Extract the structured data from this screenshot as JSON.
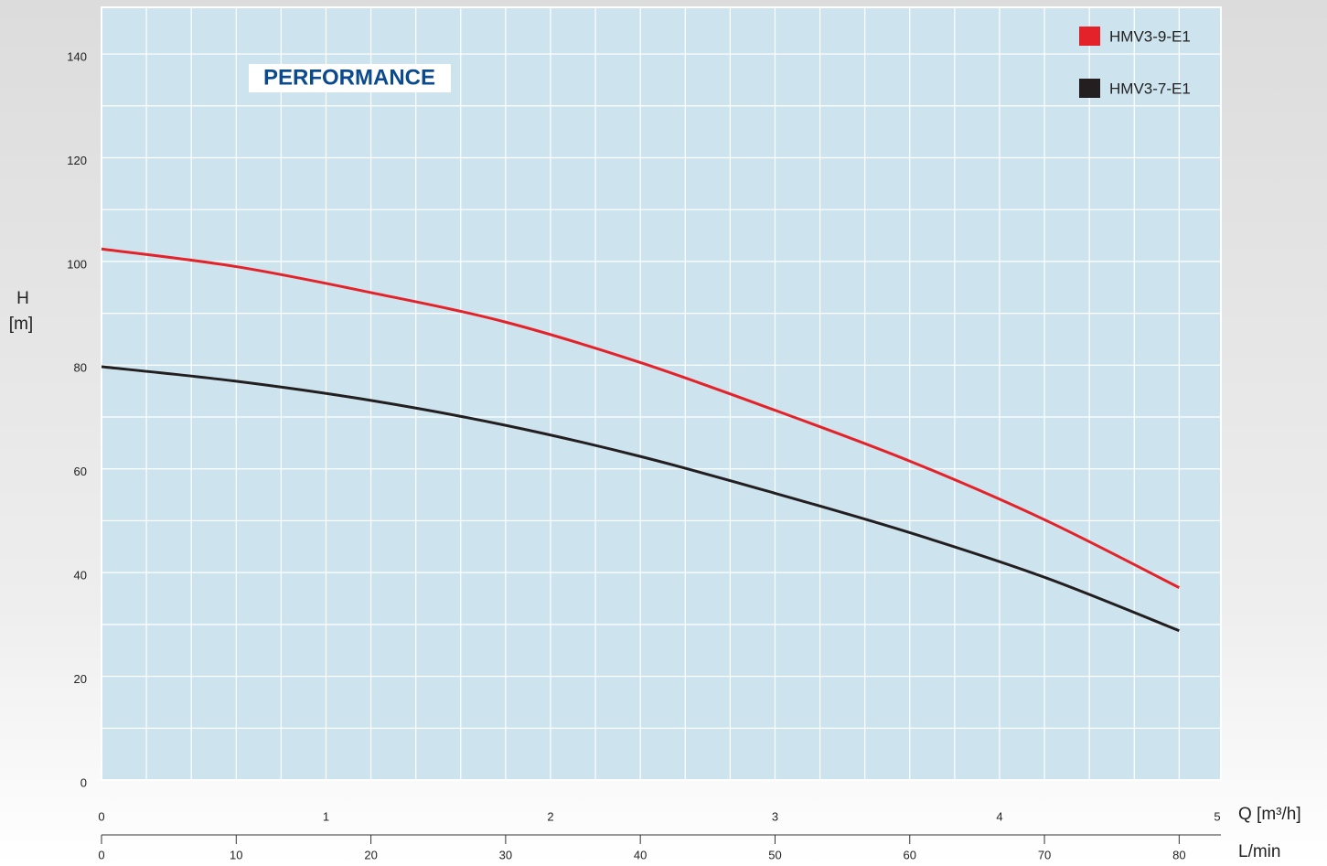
{
  "chart_data": {
    "type": "line",
    "title": "PERFORMANCE",
    "ylabel": [
      "H",
      "[m]"
    ],
    "xlabel": "L/min",
    "x2label": "Q [m³/h]",
    "x": [
      0,
      10,
      20,
      30,
      40,
      50,
      60,
      70,
      80
    ],
    "series": [
      {
        "name": "HMV3-9-E1",
        "color": "#e42229",
        "values": [
          102.4,
          99,
          94,
          88.3,
          80.5,
          71.3,
          61.5,
          50.2,
          37.1
        ]
      },
      {
        "name": "HMV3-7-E1",
        "color": "#231f20",
        "values": [
          79.7,
          76.9,
          73.2,
          68.4,
          62.4,
          55.3,
          47.7,
          39.1,
          28.8
        ]
      }
    ],
    "xlim": [
      0,
      83.1
    ],
    "xticks": [
      0,
      10,
      20,
      30,
      40,
      50,
      60,
      70,
      80
    ],
    "x2lim": [
      0,
      4.986
    ],
    "x2ticks": [
      0,
      1,
      2,
      3,
      4,
      5
    ],
    "x2minor": [
      0.2,
      0.4,
      0.6,
      0.8,
      1,
      1.2,
      1.4,
      1.6,
      1.8,
      2,
      2.2,
      2.4,
      2.6,
      2.8,
      3,
      3.2,
      3.4,
      3.6,
      3.8,
      4,
      4.2,
      4.4,
      4.6,
      4.8
    ],
    "ylim": [
      0,
      149
    ],
    "yticks": [
      0,
      20,
      40,
      60,
      80,
      100,
      120,
      140
    ],
    "yminor": [
      10,
      20,
      30,
      40,
      50,
      60,
      70,
      80,
      90,
      100,
      110,
      120,
      130,
      140
    ],
    "grid": true,
    "legend": "top-right",
    "plot_background": "#cde4ee"
  }
}
